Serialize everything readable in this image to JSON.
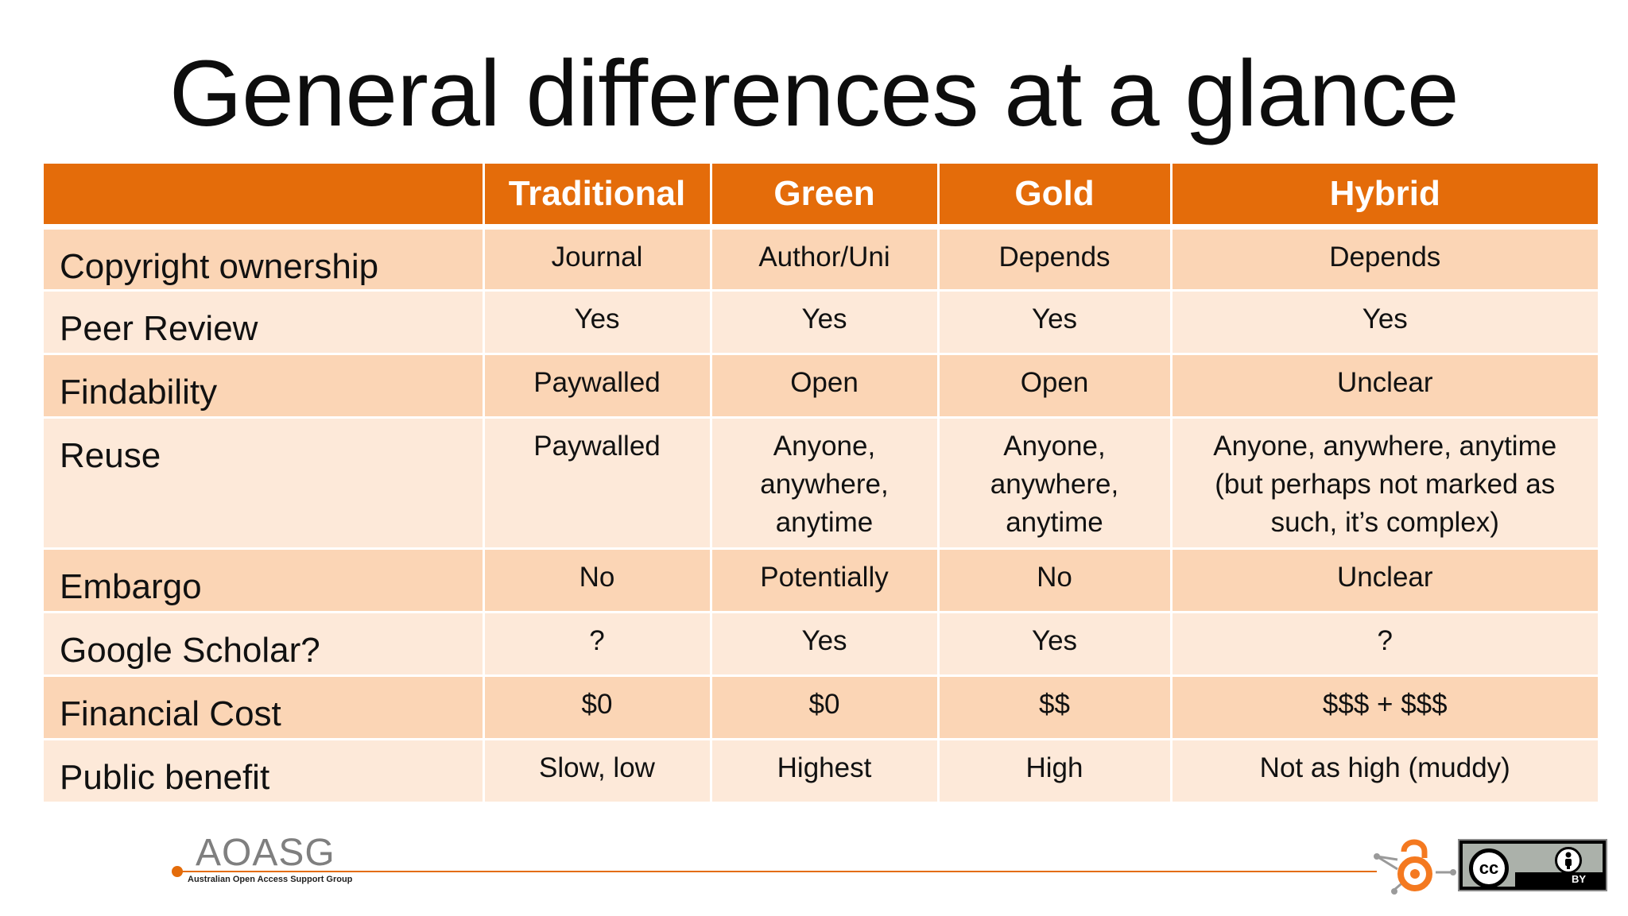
{
  "title": "General differences at a glance",
  "table": {
    "headers": [
      "",
      "Traditional",
      "Green",
      "Gold",
      "Hybrid"
    ],
    "rows": [
      {
        "label": "Copyright ownership",
        "cells": [
          "Journal",
          "Author/Uni",
          "Depends",
          "Depends"
        ]
      },
      {
        "label": "Peer Review",
        "cells": [
          "Yes",
          "Yes",
          "Yes",
          "Yes"
        ]
      },
      {
        "label": "Findability",
        "cells": [
          "Paywalled",
          "Open",
          "Open",
          "Unclear"
        ]
      },
      {
        "label": "Reuse",
        "cells": [
          "Paywalled",
          "Anyone, anywhere, anytime",
          "Anyone, anywhere, anytime",
          "Anyone, anywhere, anytime (but perhaps not marked as such, it’s complex)"
        ]
      },
      {
        "label": "Embargo",
        "cells": [
          "No",
          "Potentially",
          "No",
          "Unclear"
        ]
      },
      {
        "label": "Google Scholar?",
        "cells": [
          "?",
          "Yes",
          "Yes",
          "?"
        ]
      },
      {
        "label": "Financial Cost",
        "cells": [
          "$0",
          "$0",
          "$$",
          "$$$ + $$$"
        ]
      },
      {
        "label": "Public benefit",
        "cells": [
          "Slow, low",
          "Highest",
          "High",
          "Not as high (muddy)"
        ]
      }
    ]
  },
  "footer": {
    "logo_text": "AOASG",
    "logo_subtitle": "Australian Open Access Support Group",
    "cc_symbol": "cc",
    "cc_by_label": "BY"
  },
  "colors": {
    "header_orange": "#e46c0a",
    "row_dark": "#fbd5b5",
    "row_light": "#fde9d9"
  }
}
